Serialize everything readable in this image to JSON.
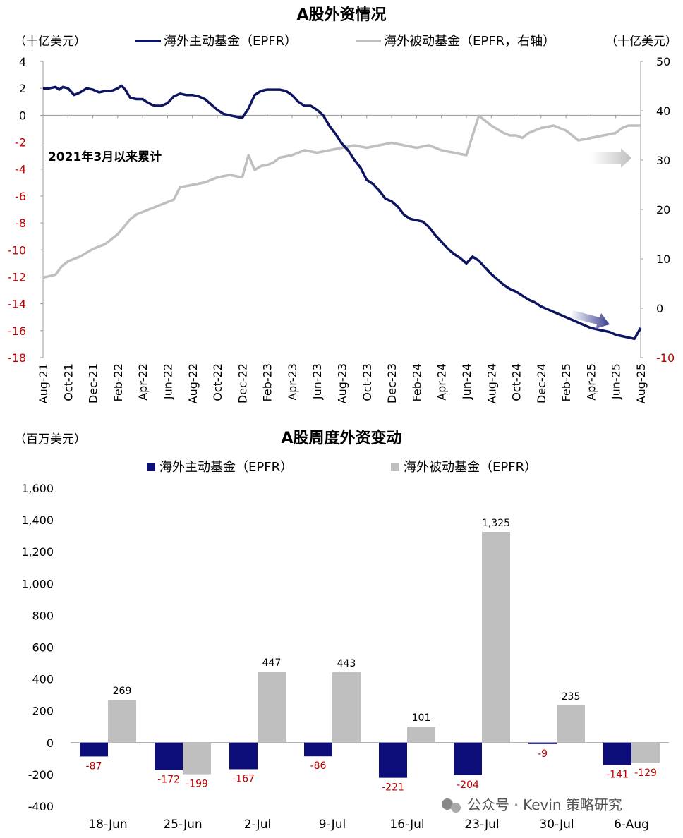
{
  "chart_data": [
    {
      "type": "line",
      "title": "A股外资情况",
      "left_unit": "（十亿美元）",
      "right_unit": "（十亿美元）",
      "annotation": "2021年3月以来累计",
      "x_ticks": [
        "Aug-21",
        "Oct-21",
        "Dec-21",
        "Feb-22",
        "Apr-22",
        "Jun-22",
        "Aug-22",
        "Oct-22",
        "Dec-22",
        "Feb-23",
        "Apr-23",
        "Jun-23",
        "Aug-23",
        "Oct-23",
        "Dec-23",
        "Feb-24",
        "Apr-24",
        "Jun-24",
        "Aug-24",
        "Oct-24",
        "Dec-24",
        "Feb-25",
        "Apr-25",
        "Jun-25",
        "Aug-25"
      ],
      "y_left": {
        "min": -18,
        "max": 4,
        "step": 2
      },
      "y_right": {
        "min": -10,
        "max": 50,
        "step": 10
      },
      "legend_position": "top",
      "colors": {
        "active": "#0d1560",
        "passive": "#bfbfbf",
        "neg_tick": "#c00000"
      },
      "series": [
        {
          "name": "海外主动基金（EPFR）",
          "axis": "left",
          "x_month_index": [
            0,
            0.5,
            1,
            1.3,
            1.6,
            2,
            2.5,
            3,
            3.5,
            4,
            4.5,
            5,
            5.5,
            6,
            6.3,
            6.6,
            7,
            7.5,
            8,
            8.3,
            8.7,
            9,
            9.5,
            10,
            10.5,
            11,
            11.5,
            12,
            12.5,
            13,
            13.5,
            14,
            14.5,
            15,
            15.5,
            16,
            16.5,
            17,
            17.5,
            18,
            18.5,
            19,
            19.5,
            20,
            20.5,
            21,
            21.5,
            22,
            22.5,
            23,
            23.5,
            24,
            24.5,
            25,
            25.5,
            26,
            26.5,
            27,
            27.5,
            28,
            28.5,
            29,
            29.5,
            30,
            30.5,
            31,
            31.5,
            32,
            32.5,
            33,
            33.5,
            34,
            34.5,
            35,
            35.5,
            36,
            36.5,
            37,
            37.5,
            38,
            38.5,
            39,
            39.5,
            40,
            40.5,
            41,
            41.5,
            42,
            42.5,
            43,
            43.5,
            44,
            44.5,
            45,
            45.5,
            46,
            46.5,
            47,
            47.5,
            48
          ],
          "values": [
            2.0,
            2.0,
            2.1,
            1.9,
            2.1,
            2.0,
            1.5,
            1.7,
            2.0,
            1.9,
            1.7,
            1.8,
            1.8,
            2.0,
            2.2,
            1.9,
            1.3,
            1.2,
            1.2,
            1.0,
            0.8,
            0.7,
            0.7,
            0.9,
            1.4,
            1.6,
            1.5,
            1.5,
            1.4,
            1.2,
            0.8,
            0.4,
            0.1,
            0.0,
            -0.1,
            -0.2,
            0.5,
            1.5,
            1.8,
            1.9,
            1.9,
            1.9,
            1.8,
            1.5,
            1.0,
            0.7,
            0.7,
            0.4,
            0.0,
            -0.8,
            -1.4,
            -2.1,
            -2.6,
            -3.3,
            -3.9,
            -4.8,
            -5.1,
            -5.6,
            -6.2,
            -6.4,
            -6.8,
            -7.4,
            -7.7,
            -7.8,
            -7.9,
            -8.3,
            -8.9,
            -9.4,
            -9.9,
            -10.3,
            -10.6,
            -11.0,
            -10.5,
            -10.8,
            -11.3,
            -11.8,
            -12.2,
            -12.6,
            -12.9,
            -13.1,
            -13.4,
            -13.7,
            -13.9,
            -14.2,
            -14.4,
            -14.6,
            -14.8,
            -15.0,
            -15.2,
            -15.4,
            -15.6,
            -15.8,
            -15.9,
            -16.0,
            -16.1,
            -16.3,
            -16.4,
            -16.5,
            -16.6,
            -15.8
          ]
        },
        {
          "name": "海外被动基金（EPFR，右轴）",
          "axis": "right",
          "x_month_index": [
            0,
            1,
            1.5,
            2,
            3,
            4,
            5,
            6,
            7,
            7.5,
            8,
            9,
            10,
            10.5,
            11,
            12,
            13,
            13.5,
            14,
            15,
            16,
            16.5,
            17,
            17.5,
            18,
            18.5,
            19,
            20,
            21,
            22,
            23,
            24,
            25,
            26,
            27,
            28,
            29,
            30,
            31,
            32,
            33,
            34,
            35,
            36,
            37,
            37.5,
            38,
            38.5,
            39,
            40,
            41,
            42,
            43,
            44,
            45,
            46,
            46.5,
            47,
            48
          ],
          "values": [
            6.2,
            6.8,
            8.5,
            9.5,
            10.5,
            12.0,
            13.0,
            15.0,
            18.0,
            19.0,
            19.5,
            20.5,
            21.5,
            22.0,
            24.5,
            25.0,
            25.5,
            26.0,
            26.5,
            27.0,
            26.5,
            31.0,
            28.0,
            28.8,
            29.0,
            29.5,
            30.5,
            31.0,
            32.0,
            31.5,
            32.0,
            32.5,
            33.0,
            32.5,
            33.0,
            33.5,
            33.0,
            32.5,
            33.0,
            32.0,
            31.5,
            31.0,
            39.0,
            37.0,
            35.5,
            35.0,
            35.0,
            34.5,
            35.5,
            36.5,
            37.0,
            36.0,
            34.0,
            34.5,
            35.0,
            35.5,
            36.5,
            37.0,
            37.0
          ]
        }
      ]
    },
    {
      "type": "bar",
      "title": "A股周度外资变动",
      "unit": "（百万美元）",
      "legend_position": "top",
      "categories": [
        "18-Jun",
        "25-Jun",
        "2-Jul",
        "9-Jul",
        "16-Jul",
        "23-Jul",
        "30-Jul",
        "6-Aug"
      ],
      "ylim": [
        -400,
        1600
      ],
      "y_step": 200,
      "colors": {
        "active": "#0d0d7a",
        "passive": "#bfbfbf",
        "neg_label": "#c00000"
      },
      "series": [
        {
          "name": "海外主动基金（EPFR）",
          "values": [
            -87,
            -172,
            -167,
            -86,
            -221,
            -204,
            -9,
            -141
          ]
        },
        {
          "name": "海外被动基金（EPFR）",
          "values": [
            269,
            -199,
            447,
            443,
            101,
            1325,
            235,
            -129
          ]
        }
      ]
    }
  ],
  "watermark": "公众号 · Kevin 策略研究"
}
